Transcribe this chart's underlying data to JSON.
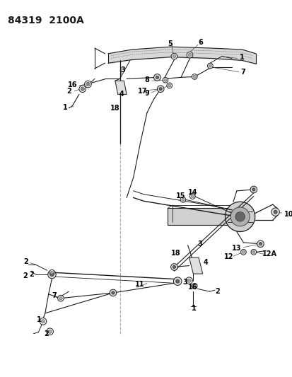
{
  "title": "84319  2100A",
  "bg_color": "#ffffff",
  "line_color": "#1a1a1a",
  "label_color": "#000000",
  "figsize": [
    4.14,
    5.33
  ],
  "dpi": 100,
  "title_fontsize": 10,
  "label_fontsize": 7
}
